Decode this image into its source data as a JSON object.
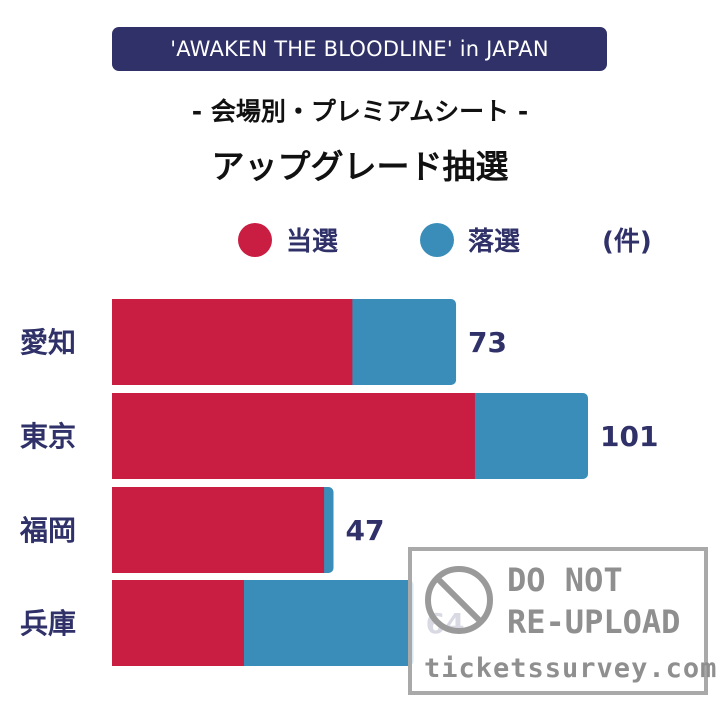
{
  "header": {
    "badge": "'AWAKEN THE BLOODLINE' in JAPAN",
    "subtitle": "- 会場別・プレミアムシート -",
    "title": "アップグレード抽選"
  },
  "legend": {
    "items": [
      {
        "label": "当選",
        "color": "#c91d42"
      },
      {
        "label": "落選",
        "color": "#3a8db8"
      }
    ],
    "unit": "(件)"
  },
  "chart_data": {
    "type": "bar",
    "orientation": "horizontal",
    "stacked": true,
    "categories": [
      "愛知",
      "東京",
      "福岡",
      "兵庫"
    ],
    "series": [
      {
        "name": "当選",
        "values": [
          51,
          77,
          45,
          28
        ],
        "color": "#c91d42"
      },
      {
        "name": "落選",
        "values": [
          22,
          24,
          2,
          36
        ],
        "color": "#3a8db8"
      }
    ],
    "totals": [
      "73",
      "101",
      "47",
      "64"
    ],
    "title": "アップグレード抽選",
    "xlim": [
      0,
      101
    ]
  },
  "watermark": {
    "line1": "DO NOT",
    "line2": "RE-UPLOAD",
    "line3": "ticketssurvey.com"
  }
}
